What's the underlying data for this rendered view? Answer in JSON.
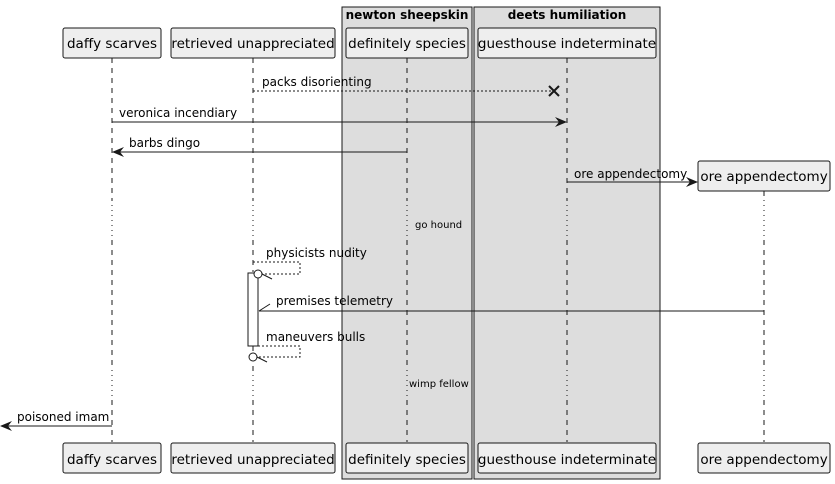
{
  "boxes": [
    {
      "title": "newton sheepskin"
    },
    {
      "title": "deets humiliation"
    }
  ],
  "participants": [
    {
      "id": "daffy",
      "label": "daffy scarves"
    },
    {
      "id": "retrieved",
      "label": "retrieved unappreciated"
    },
    {
      "id": "definitely",
      "label": "definitely species"
    },
    {
      "id": "guesthouse",
      "label": "guesthouse indeterminate"
    },
    {
      "id": "ore",
      "label": "ore appendectomy"
    }
  ],
  "messages": [
    {
      "label": "packs disorienting",
      "from": "retrieved",
      "to": "guesthouse",
      "style": "dashed",
      "head": "destroy"
    },
    {
      "label": "veronica incendiary",
      "from": "daffy",
      "to": "guesthouse",
      "style": "solid",
      "head": "arrow"
    },
    {
      "label": "barbs dingo",
      "from": "definitely",
      "to": "daffy",
      "style": "solid",
      "head": "arrow"
    },
    {
      "label": "ore appendectomy",
      "from": "guesthouse",
      "to": "ore",
      "style": "solid",
      "head": "create"
    },
    {
      "label": "physicists nudity",
      "from": "retrieved",
      "to": "retrieved",
      "style": "dashed",
      "head": "open-circle"
    },
    {
      "label": "premises telemetry",
      "from": "ore",
      "to": "retrieved",
      "style": "solid",
      "head": "half-arrow"
    },
    {
      "label": "maneuvers bulls",
      "from": "retrieved",
      "to": "retrieved",
      "style": "dashed",
      "head": "open-circle"
    },
    {
      "label": "poisoned imam",
      "from": "daffy",
      "to": "outside-left",
      "style": "solid",
      "head": "arrow"
    }
  ],
  "delays": [
    {
      "label": "go hound"
    },
    {
      "label": "wimp fellow"
    }
  ]
}
